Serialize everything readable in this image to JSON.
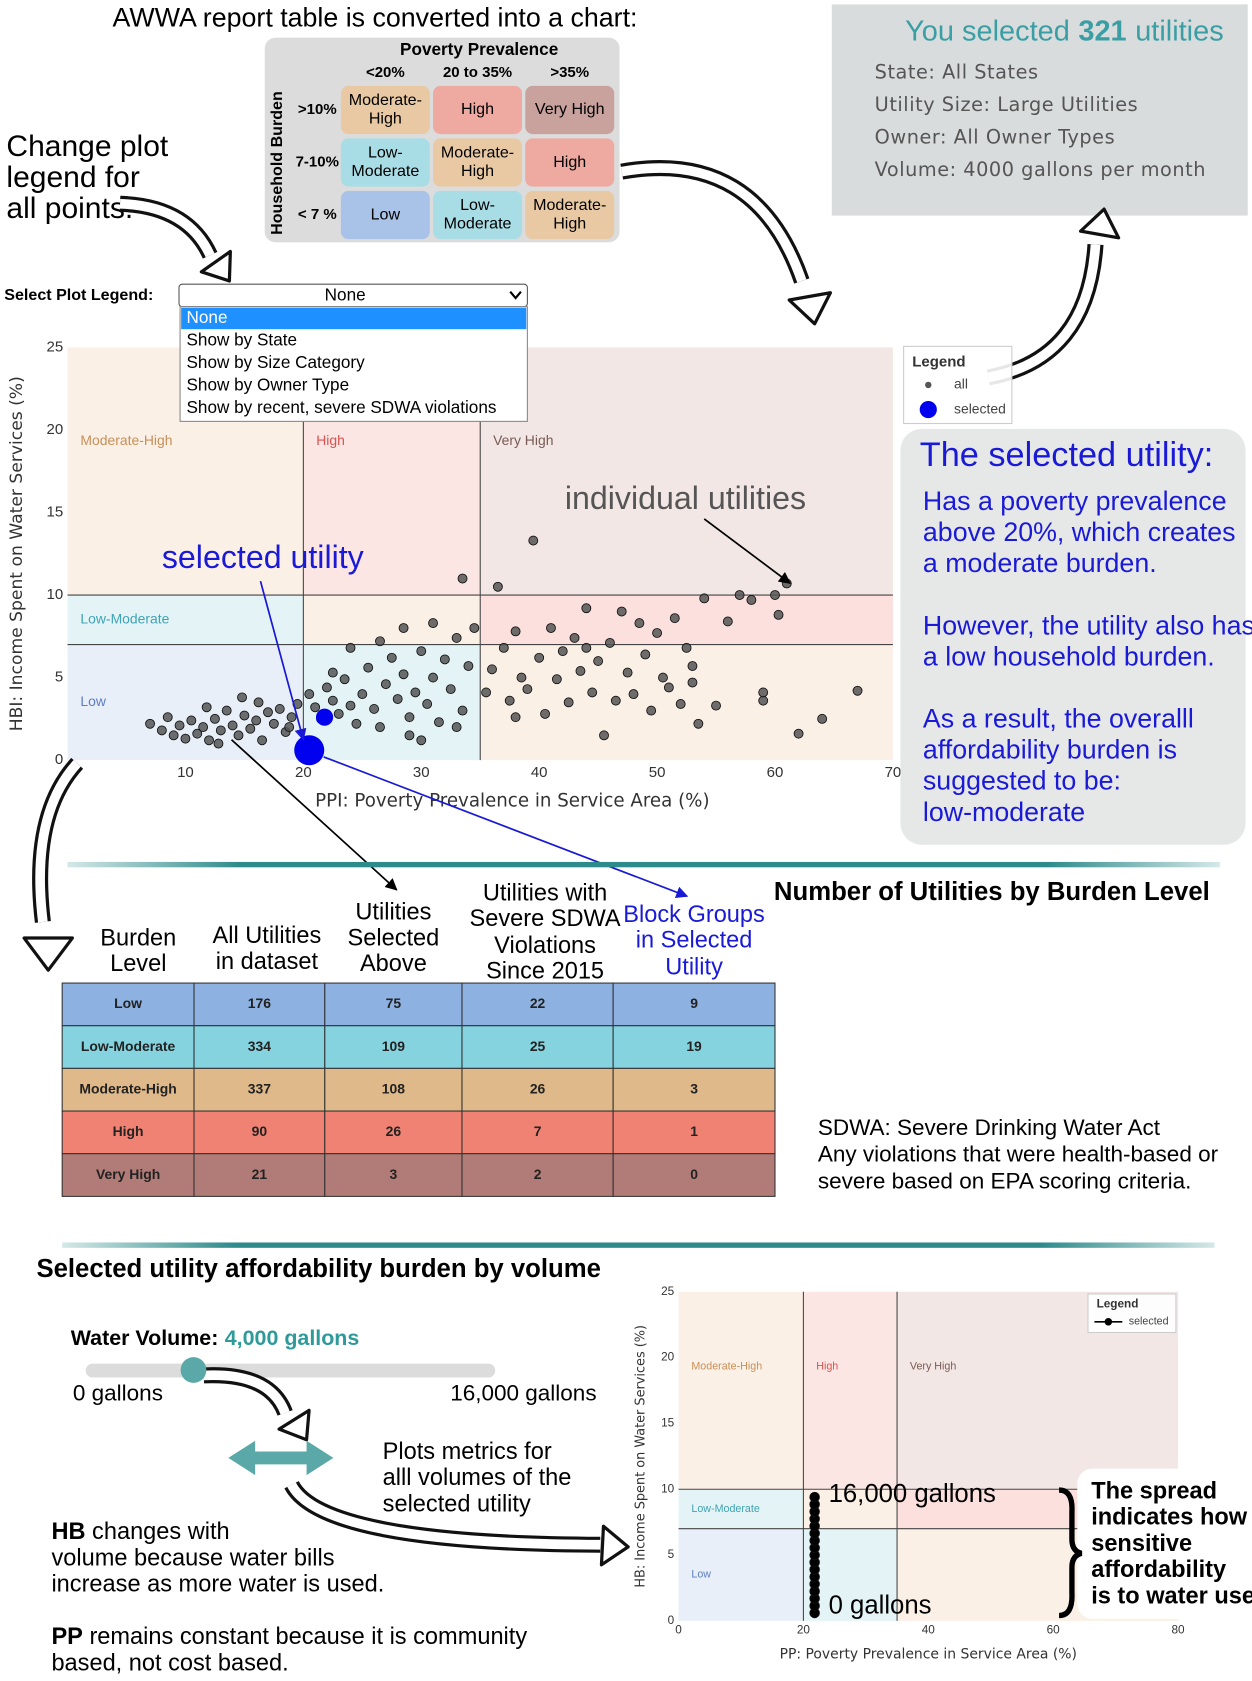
{
  "header": {
    "title": "AWWA report table is converted into a chart:"
  },
  "awwa_table": {
    "title": "Poverty Prevalence",
    "row_title": "Household Burden",
    "columns": [
      "<20%",
      "20 to 35%",
      ">35%"
    ],
    "rows": [
      ">10%",
      "7-10%",
      "< 7 %"
    ],
    "cells": [
      [
        [
          "Moderate-",
          "High"
        ],
        [
          "High"
        ],
        [
          "Very High"
        ]
      ],
      [
        [
          "Low-",
          "Moderate"
        ],
        [
          "Moderate-",
          "High"
        ],
        [
          "High"
        ]
      ],
      [
        [
          "Low"
        ],
        [
          "Low-",
          "Moderate"
        ],
        [
          "Moderate-",
          "High"
        ]
      ]
    ],
    "cell_colors": [
      [
        "#e8c9a3",
        "#eea9a0",
        "#c9a29e"
      ],
      [
        "#a9dde6",
        "#e8c9a3",
        "#eea9a0"
      ],
      [
        "#a9c3e8",
        "#a9dde6",
        "#e8c9a3"
      ]
    ]
  },
  "selection": {
    "prefix": "You selected",
    "count": 321,
    "suffix": "utilities",
    "lines": [
      "State: All States",
      "Utility Size: Large Utilities",
      "Owner: All Owner Types",
      "Volume: 4000 gallons per month"
    ]
  },
  "legend_note": {
    "lines": [
      "Change plot",
      "legend for",
      "all points."
    ]
  },
  "dropdown": {
    "label": "Select Plot Legend:",
    "selected": "None",
    "options": [
      "None",
      "Show by State",
      "Show by Size Category",
      "Show by Owner Type",
      "Show by recent, severe SDWA violations"
    ]
  },
  "annotations": {
    "individual": "individual utilities",
    "selected": "selected utility"
  },
  "selected_panel": {
    "title": "The selected utility:",
    "paragraphs": [
      [
        "Has a poverty prevalence",
        "above 20%, which creates",
        "a moderate burden."
      ],
      [
        "However, the utility also has",
        "a low household burden."
      ],
      [
        "As a result, the overalll",
        "affordability burden is",
        "suggested to be:",
        "low-moderate"
      ]
    ]
  },
  "burden_table": {
    "title": "Number of Utilities by Burden Level",
    "headers": [
      [
        "Burden",
        "Level"
      ],
      [
        "All Utilities",
        "in dataset"
      ],
      [
        "Utilities",
        "Selected",
        "Above"
      ],
      [
        "Utilities with",
        "Severe SDWA",
        "Violations",
        "Since 2015"
      ],
      [
        "Block Groups",
        "in Selected",
        "Utility"
      ]
    ],
    "rows": [
      [
        "Low",
        176,
        75,
        22,
        9
      ],
      [
        "Low-Moderate",
        334,
        109,
        25,
        19
      ],
      [
        "Moderate-High",
        337,
        108,
        26,
        3
      ],
      [
        "High",
        90,
        26,
        7,
        1
      ],
      [
        "Very High",
        21,
        3,
        2,
        0
      ]
    ],
    "row_colors": [
      "#8db1e0",
      "#85d3df",
      "#e0b98b",
      "#ef8273",
      "#b17c77"
    ]
  },
  "sdwa_note": [
    "SDWA: Severe Drinking Water Act",
    "Any violations that were health-based or",
    "severe based on EPA scoring criteria."
  ],
  "volume_section": {
    "title": "Selected utility affordability burden by volume",
    "slider_label": "Water Volume:",
    "slider_value": {
      "value": 4000,
      "label": "4,000 gallons"
    },
    "slider_min": {
      "value": 0,
      "label": "0 gallons"
    },
    "slider_max": {
      "value": 16000,
      "label": "16,000 gallons"
    },
    "plots_note": [
      "Plots metrics for",
      "alll volumes of the",
      "selected utility"
    ],
    "hb_note": {
      "term": "HB",
      "lines": [
        " changes with",
        "volume because water bills",
        "increase as more water is used."
      ]
    },
    "pp_note": {
      "term": "PP",
      "lines": [
        " remains constant because it is community",
        "based, not cost based."
      ]
    },
    "spread_note": [
      "The spread",
      "indicates how",
      "sensitive",
      "affordability",
      "is to water use."
    ]
  },
  "chart_data": [
    {
      "type": "scatter",
      "x_label": "PPI: Poverty Prevalence in Service Area (%)",
      "y_label": "HBI: Income Spent on Water Services (%)",
      "xlim": [
        0,
        70
      ],
      "xticks": [
        10,
        20,
        30,
        40,
        50,
        60,
        70
      ],
      "ylim": [
        0,
        25
      ],
      "yticks": [
        0,
        5,
        10,
        15,
        20,
        25
      ],
      "grid": false,
      "legend_title": "Legend",
      "legend_position": "top-right",
      "zones": [
        {
          "label": "Low",
          "x": [
            0,
            20
          ],
          "y": [
            0,
            7
          ],
          "color": "#e9eff8",
          "label_color": "#5b7fc4"
        },
        {
          "label": "Low-Moderate",
          "x": [
            0,
            20
          ],
          "y": [
            7,
            10
          ],
          "color": "#e4f4f6",
          "label_color": "#3fa3b3"
        },
        {
          "label": "Moderate-High",
          "x": [
            0,
            20
          ],
          "y": [
            10,
            25
          ],
          "color": "#fbf0e6",
          "label_color": "#c98f58"
        },
        {
          "x": [
            20,
            35
          ],
          "y": [
            0,
            7
          ],
          "color": "#e4f4f6"
        },
        {
          "x": [
            20,
            35
          ],
          "y": [
            7,
            10
          ],
          "color": "#fbf0e6"
        },
        {
          "label": "High",
          "x": [
            20,
            35
          ],
          "y": [
            10,
            25
          ],
          "color": "#fbe6e4",
          "label_color": "#d9534f"
        },
        {
          "x": [
            35,
            70
          ],
          "y": [
            0,
            7
          ],
          "color": "#fbf0e6"
        },
        {
          "x": [
            35,
            70
          ],
          "y": [
            7,
            10
          ],
          "color": "#fbe0de"
        },
        {
          "label": "Very High",
          "x": [
            35,
            70
          ],
          "y": [
            10,
            25
          ],
          "color": "#f2e7e5",
          "label_color": "#7a5a55"
        }
      ],
      "series": [
        {
          "name": "all",
          "color": "#555555",
          "x": [
            7,
            8,
            8.5,
            9,
            9.5,
            10,
            10.5,
            11,
            11.5,
            12,
            12.5,
            13,
            13.5,
            14,
            14.5,
            15,
            15.5,
            16,
            16.5,
            17,
            17.5,
            18,
            18.5,
            19,
            19.5,
            14.8,
            11.8,
            16.2,
            18.8,
            12.8,
            20.5,
            21,
            21.5,
            22,
            22.5,
            23,
            23.5,
            24,
            24.5,
            25,
            25.5,
            26,
            26.5,
            27,
            27.5,
            28,
            28.5,
            29,
            29.5,
            30,
            30.5,
            31,
            31.5,
            32,
            32.5,
            33,
            33.5,
            34,
            34.5,
            26.5,
            28.5,
            33.5,
            30,
            24,
            31,
            29,
            33,
            22.5,
            35.5,
            36,
            36.5,
            37,
            37.5,
            38,
            38.5,
            39,
            39.5,
            40,
            40.5,
            41,
            41.5,
            42,
            42.5,
            43,
            43.5,
            44,
            44.5,
            45,
            45.5,
            46,
            46.5,
            47,
            47.5,
            48,
            48.5,
            49,
            49.5,
            50,
            50.5,
            51,
            51.5,
            52,
            52.5,
            53,
            53.5,
            54,
            55,
            56,
            57,
            58,
            59,
            60,
            60.3,
            61,
            59,
            62,
            64,
            67,
            53,
            44,
            38
          ],
          "values": [
            2.2,
            1.8,
            2.6,
            1.5,
            2.1,
            1.3,
            2.4,
            1.6,
            2.0,
            1.2,
            2.5,
            1.8,
            3.0,
            2.1,
            1.5,
            2.7,
            1.9,
            2.4,
            1.2,
            2.9,
            2.2,
            3.1,
            1.7,
            2.6,
            3.4,
            3.8,
            3.2,
            3.5,
            2.0,
            1.0,
            4.0,
            3.2,
            2.5,
            4.4,
            3.6,
            2.8,
            4.9,
            3.3,
            2.2,
            4.0,
            5.6,
            3.1,
            2.0,
            4.6,
            6.2,
            3.7,
            5.2,
            2.6,
            4.1,
            6.6,
            3.4,
            5.0,
            2.3,
            6.1,
            4.3,
            7.4,
            3.0,
            5.7,
            8.0,
            7.2,
            8.0,
            11.0,
            1.2,
            6.8,
            8.3,
            1.5,
            2.0,
            5.3,
            4.1,
            5.5,
            10.5,
            6.8,
            3.6,
            7.8,
            5.0,
            4.3,
            13.3,
            6.2,
            2.8,
            8.0,
            4.9,
            6.6,
            3.5,
            7.4,
            5.4,
            9.2,
            4.1,
            6.0,
            1.5,
            7.1,
            3.6,
            9.0,
            5.3,
            4.0,
            8.3,
            6.4,
            3.0,
            7.7,
            5.0,
            4.4,
            8.6,
            3.4,
            6.8,
            5.7,
            2.2,
            9.8,
            3.3,
            8.4,
            10.0,
            9.7,
            3.6,
            10.0,
            8.8,
            10.7,
            4.1,
            1.6,
            2.5,
            4.2,
            4.7,
            6.8,
            2.6
          ]
        },
        {
          "name": "selected",
          "color": "#0000ee",
          "x": [
            20.5,
            21.8
          ],
          "values": [
            0.6,
            2.6
          ]
        }
      ]
    },
    {
      "type": "scatter",
      "x_label": "PP: Poverty Prevalence in Service Area (%)",
      "y_label": "HB: Income Spent on Water Services (%)",
      "xlim": [
        0,
        80
      ],
      "xticks": [
        0,
        20,
        40,
        60,
        80
      ],
      "ylim": [
        0,
        25
      ],
      "yticks": [
        0,
        5,
        10,
        15,
        20,
        25
      ],
      "grid": false,
      "legend_title": "Legend",
      "legend_position": "top-right",
      "zones": [
        {
          "label": "Low",
          "x": [
            0,
            20
          ],
          "y": [
            0,
            7
          ],
          "color": "#e9eff8",
          "label_color": "#5b7fc4"
        },
        {
          "label": "Low-Moderate",
          "x": [
            0,
            20
          ],
          "y": [
            7,
            10
          ],
          "color": "#e4f4f6",
          "label_color": "#3fa3b3"
        },
        {
          "label": "Moderate-High",
          "x": [
            0,
            20
          ],
          "y": [
            10,
            25
          ],
          "color": "#fbf0e6",
          "label_color": "#c98f58"
        },
        {
          "x": [
            20,
            35
          ],
          "y": [
            0,
            7
          ],
          "color": "#e4f4f6"
        },
        {
          "x": [
            20,
            35
          ],
          "y": [
            7,
            10
          ],
          "color": "#fbf0e6"
        },
        {
          "label": "High",
          "x": [
            20,
            35
          ],
          "y": [
            10,
            25
          ],
          "color": "#fbe6e4",
          "label_color": "#d9534f"
        },
        {
          "x": [
            35,
            80
          ],
          "y": [
            0,
            7
          ],
          "color": "#fbf0e6"
        },
        {
          "x": [
            35,
            80
          ],
          "y": [
            7,
            10
          ],
          "color": "#fbe0de"
        },
        {
          "label": "Very High",
          "x": [
            35,
            80
          ],
          "y": [
            10,
            25
          ],
          "color": "#f2e7e5",
          "label_color": "#7a5a55"
        }
      ],
      "series": [
        {
          "name": "selected",
          "color": "#000000",
          "x": [
            21.8,
            21.8,
            21.8,
            21.8,
            21.8,
            21.8,
            21.8,
            21.8,
            21.8,
            21.8,
            21.8,
            21.8,
            21.8,
            21.8,
            21.8,
            21.8,
            21.8
          ],
          "values": [
            0.6,
            1.15,
            1.7,
            2.25,
            2.8,
            3.35,
            3.9,
            4.45,
            5.0,
            5.55,
            6.1,
            6.65,
            7.2,
            7.75,
            8.3,
            8.85,
            9.4
          ]
        }
      ],
      "annotations": [
        "0 gallons",
        "16,000 gallons"
      ]
    }
  ]
}
